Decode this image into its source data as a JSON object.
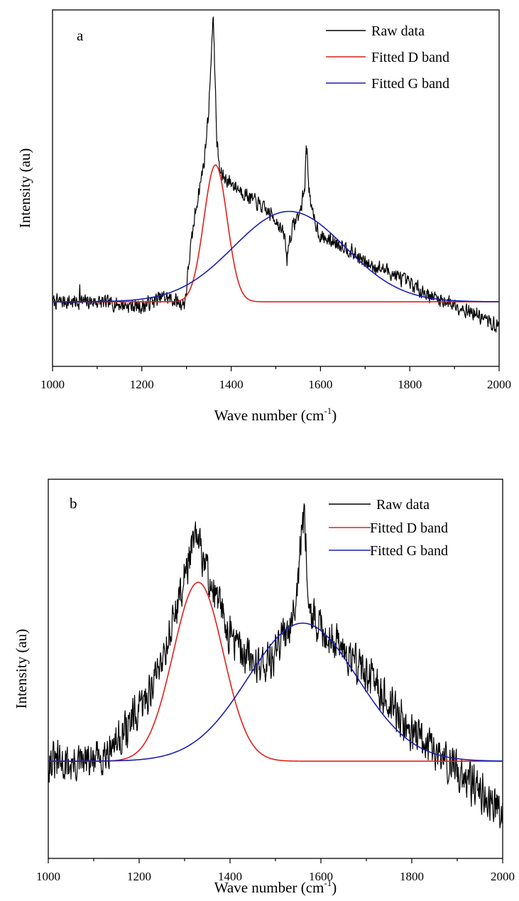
{
  "chart_data": [
    {
      "type": "line",
      "panel_label": "a",
      "xlabel": "Wave number (cm",
      "xlabel_sup": "-1",
      "xlabel_close": ")",
      "ylabel": "Intensity (au)",
      "xlim": [
        1000,
        2000
      ],
      "x_ticks": [
        1000,
        1200,
        1400,
        1600,
        1800,
        2000
      ],
      "ylim": [
        -0.25,
        1.13
      ],
      "grid": false,
      "legend_position": "top-right",
      "series": [
        {
          "name": "Raw data",
          "color": "#000000",
          "noise": 0.025,
          "x": [
            1000,
            1050,
            1059,
            1061,
            1063,
            1100,
            1150,
            1200,
            1220,
            1250,
            1280,
            1295,
            1300,
            1305,
            1320,
            1340,
            1350,
            1355,
            1360,
            1362,
            1364,
            1368,
            1375,
            1385,
            1400,
            1430,
            1460,
            1500,
            1520,
            1525,
            1528,
            1540,
            1555,
            1565,
            1568,
            1570,
            1574,
            1580,
            1600,
            1650,
            1700,
            1750,
            1800,
            1850,
            1900,
            1950,
            2000
          ],
          "y": [
            0.0,
            0.0,
            0.0,
            0.05,
            0.0,
            0.0,
            -0.01,
            -0.02,
            0.0,
            0.02,
            0.0,
            -0.01,
            0.05,
            0.15,
            0.35,
            0.55,
            0.75,
            0.95,
            1.1,
            1.0,
            0.85,
            0.62,
            0.5,
            0.48,
            0.46,
            0.42,
            0.38,
            0.32,
            0.25,
            0.16,
            0.22,
            0.3,
            0.35,
            0.45,
            0.6,
            0.58,
            0.45,
            0.35,
            0.25,
            0.22,
            0.15,
            0.12,
            0.07,
            0.02,
            -0.01,
            -0.05,
            -0.1
          ]
        },
        {
          "name": "Fitted D band",
          "color": "#e0201b",
          "curve": "gaussian",
          "center": 1365,
          "amplitude": 0.53,
          "sigma": 26,
          "baseline": 0.0
        },
        {
          "name": "Fitted G band",
          "color": "#1c1fb5",
          "curve": "gaussian",
          "center": 1530,
          "amplitude": 0.35,
          "sigma": 125,
          "baseline": 0.0
        }
      ]
    },
    {
      "type": "line",
      "panel_label": "b",
      "xlabel": "Wave number (cm",
      "xlabel_sup": "-1",
      "xlabel_close": ")",
      "ylabel": "Intensity (au)",
      "xlim": [
        1000,
        2000
      ],
      "x_ticks": [
        1000,
        1200,
        1400,
        1600,
        1800,
        2000
      ],
      "ylim": [
        -0.5,
        1.45
      ],
      "grid": false,
      "legend_position": "top-right",
      "series": [
        {
          "name": "Raw data",
          "color": "#000000",
          "noise": 0.09,
          "x": [
            1000,
            1050,
            1100,
            1150,
            1200,
            1230,
            1260,
            1290,
            1310,
            1325,
            1340,
            1360,
            1380,
            1400,
            1430,
            1460,
            1490,
            1510,
            1530,
            1545,
            1555,
            1560,
            1565,
            1570,
            1575,
            1585,
            1600,
            1650,
            1700,
            1750,
            1800,
            1850,
            1900,
            1950,
            2000
          ],
          "y": [
            0.0,
            -0.02,
            0.0,
            0.1,
            0.25,
            0.4,
            0.6,
            0.85,
            1.05,
            1.15,
            1.05,
            0.9,
            0.78,
            0.65,
            0.55,
            0.5,
            0.52,
            0.6,
            0.7,
            0.85,
            1.1,
            1.25,
            1.2,
            1.0,
            0.8,
            0.72,
            0.68,
            0.58,
            0.45,
            0.3,
            0.15,
            0.05,
            -0.05,
            -0.15,
            -0.25
          ]
        },
        {
          "name": "Fitted D band",
          "color": "#e0201b",
          "curve": "gaussian",
          "center": 1330,
          "amplitude": 0.92,
          "sigma": 55,
          "baseline": 0.0
        },
        {
          "name": "Fitted G band",
          "color": "#1c1fb5",
          "curve": "gaussian",
          "center": 1560,
          "amplitude": 0.71,
          "sigma": 120,
          "baseline": 0.0
        }
      ]
    }
  ]
}
